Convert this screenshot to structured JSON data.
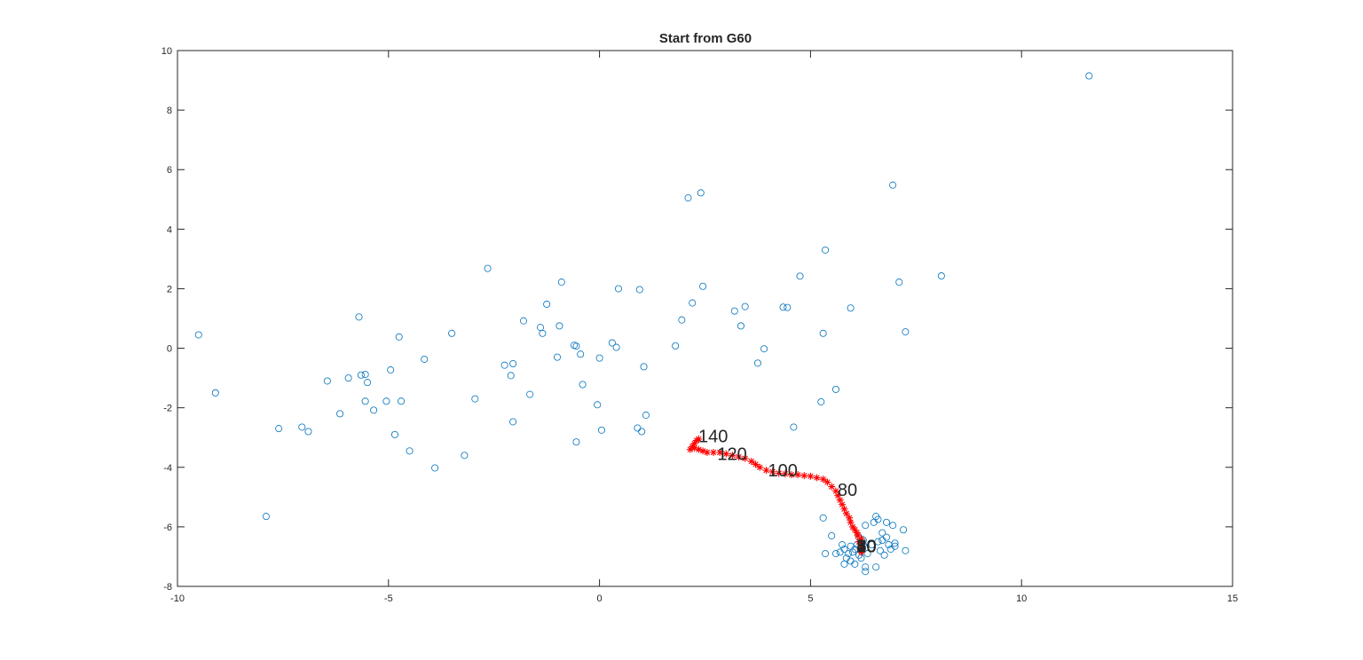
{
  "chart_data": {
    "type": "scatter",
    "title": "Start from G60",
    "xlabel": "",
    "ylabel": "",
    "xlim": [
      -10,
      15
    ],
    "ylim": [
      -8,
      10
    ],
    "xticks": [
      -10,
      -5,
      0,
      5,
      10,
      15
    ],
    "yticks": [
      -8,
      -6,
      -4,
      -2,
      0,
      2,
      4,
      6,
      8,
      10
    ],
    "xtick_labels": [
      "-10",
      "-5",
      "0",
      "5",
      "10",
      "15"
    ],
    "ytick_labels": [
      "-8",
      "-6",
      "-4",
      "-2",
      "0",
      "2",
      "4",
      "6",
      "8",
      "10"
    ],
    "grid": false,
    "colors": {
      "points": "#0072BD",
      "trajectory": "#FF0000",
      "axes": "#262626"
    },
    "series": [
      {
        "marker": "circle",
        "points": [
          [
            -9.5,
            0.45
          ],
          [
            -9.1,
            -1.5
          ],
          [
            -7.9,
            -5.65
          ],
          [
            -7.6,
            -2.7
          ],
          [
            -7.05,
            -2.65
          ],
          [
            -6.9,
            -2.8
          ],
          [
            -6.45,
            -1.1
          ],
          [
            -6.15,
            -2.2
          ],
          [
            -5.95,
            -1.0
          ],
          [
            -5.7,
            1.05
          ],
          [
            -5.65,
            -0.9
          ],
          [
            -5.55,
            -0.88
          ],
          [
            -5.55,
            -1.78
          ],
          [
            -5.5,
            -1.15
          ],
          [
            -5.35,
            -2.08
          ],
          [
            -5.05,
            -1.78
          ],
          [
            -4.95,
            -0.73
          ],
          [
            -4.85,
            -2.9
          ],
          [
            -4.75,
            0.38
          ],
          [
            -4.7,
            -1.78
          ],
          [
            -4.5,
            -3.45
          ],
          [
            -4.15,
            -0.37
          ],
          [
            -3.9,
            -4.02
          ],
          [
            -3.5,
            0.5
          ],
          [
            -3.2,
            -3.6
          ],
          [
            -2.95,
            -1.7
          ],
          [
            -2.65,
            2.68
          ],
          [
            -2.25,
            -0.57
          ],
          [
            -2.1,
            -0.92
          ],
          [
            -2.05,
            -0.52
          ],
          [
            -2.05,
            -2.47
          ],
          [
            -1.8,
            0.92
          ],
          [
            -1.65,
            -1.55
          ],
          [
            -1.4,
            0.7
          ],
          [
            -1.35,
            0.5
          ],
          [
            -1.25,
            1.48
          ],
          [
            -1.0,
            -0.3
          ],
          [
            -0.95,
            0.75
          ],
          [
            -0.9,
            2.22
          ],
          [
            -0.6,
            0.1
          ],
          [
            -0.55,
            0.07
          ],
          [
            -0.55,
            -3.15
          ],
          [
            -0.45,
            -0.2
          ],
          [
            -0.4,
            -1.22
          ],
          [
            -0.05,
            -1.9
          ],
          [
            0.0,
            -0.33
          ],
          [
            0.05,
            -2.75
          ],
          [
            0.3,
            0.18
          ],
          [
            0.4,
            0.03
          ],
          [
            0.45,
            2.0
          ],
          [
            0.9,
            -2.68
          ],
          [
            0.95,
            1.97
          ],
          [
            1.0,
            -2.8
          ],
          [
            1.05,
            -0.62
          ],
          [
            1.1,
            -2.25
          ],
          [
            1.8,
            0.08
          ],
          [
            1.95,
            0.95
          ],
          [
            2.1,
            5.05
          ],
          [
            2.2,
            1.52
          ],
          [
            2.4,
            5.22
          ],
          [
            2.45,
            2.08
          ],
          [
            3.2,
            1.25
          ],
          [
            3.35,
            0.75
          ],
          [
            3.45,
            1.4
          ],
          [
            3.75,
            -0.5
          ],
          [
            3.9,
            -0.02
          ],
          [
            4.35,
            1.38
          ],
          [
            4.45,
            1.37
          ],
          [
            4.6,
            -2.65
          ],
          [
            4.75,
            2.42
          ],
          [
            5.25,
            -1.8
          ],
          [
            5.3,
            0.5
          ],
          [
            5.35,
            3.3
          ],
          [
            5.6,
            -1.38
          ],
          [
            5.95,
            1.35
          ],
          [
            6.95,
            5.48
          ],
          [
            7.1,
            2.22
          ],
          [
            7.25,
            0.55
          ],
          [
            8.1,
            2.43
          ],
          [
            11.6,
            9.15
          ],
          [
            5.3,
            -5.7
          ],
          [
            5.35,
            -6.9
          ],
          [
            5.5,
            -6.3
          ],
          [
            5.6,
            -6.9
          ],
          [
            5.7,
            -6.85
          ],
          [
            5.75,
            -6.6
          ],
          [
            5.8,
            -6.75
          ],
          [
            5.8,
            -7.25
          ],
          [
            5.85,
            -7.05
          ],
          [
            5.9,
            -6.9
          ],
          [
            5.95,
            -6.65
          ],
          [
            5.95,
            -7.15
          ],
          [
            6.0,
            -6.85
          ],
          [
            6.05,
            -6.75
          ],
          [
            6.05,
            -7.25
          ],
          [
            6.1,
            -6.6
          ],
          [
            6.15,
            -6.35
          ],
          [
            6.15,
            -6.95
          ],
          [
            6.2,
            -7.05
          ],
          [
            6.25,
            -6.45
          ],
          [
            6.25,
            -6.6
          ],
          [
            6.3,
            -5.95
          ],
          [
            6.3,
            -6.7
          ],
          [
            6.3,
            -7.35
          ],
          [
            6.3,
            -7.5
          ],
          [
            6.35,
            -6.9
          ],
          [
            6.45,
            -6.6
          ],
          [
            6.5,
            -5.85
          ],
          [
            6.55,
            -5.65
          ],
          [
            6.55,
            -7.35
          ],
          [
            6.6,
            -5.75
          ],
          [
            6.6,
            -6.5
          ],
          [
            6.65,
            -6.8
          ],
          [
            6.7,
            -6.2
          ],
          [
            6.7,
            -6.45
          ],
          [
            6.75,
            -6.95
          ],
          [
            6.8,
            -5.85
          ],
          [
            6.8,
            -6.35
          ],
          [
            6.85,
            -6.6
          ],
          [
            6.9,
            -6.75
          ],
          [
            6.95,
            -5.95
          ],
          [
            7.0,
            -6.65
          ],
          [
            7.0,
            -6.55
          ],
          [
            7.2,
            -6.1
          ],
          [
            7.25,
            -6.8
          ]
        ]
      },
      {
        "marker": "asterisk",
        "points": [
          [
            6.2,
            -6.85
          ],
          [
            6.2,
            -6.8
          ],
          [
            6.18,
            -6.75
          ],
          [
            6.22,
            -6.7
          ],
          [
            6.2,
            -6.6
          ],
          [
            6.15,
            -6.5
          ],
          [
            6.2,
            -6.4
          ],
          [
            6.12,
            -6.3
          ],
          [
            6.1,
            -6.2
          ],
          [
            6.05,
            -6.1
          ],
          [
            6.0,
            -6.0
          ],
          [
            5.95,
            -5.85
          ],
          [
            5.92,
            -5.7
          ],
          [
            5.85,
            -5.55
          ],
          [
            5.8,
            -5.4
          ],
          [
            5.75,
            -5.25
          ],
          [
            5.7,
            -5.1
          ],
          [
            5.65,
            -4.95
          ],
          [
            5.6,
            -4.8
          ],
          [
            5.5,
            -4.65
          ],
          [
            5.4,
            -4.5
          ],
          [
            5.3,
            -4.4
          ],
          [
            5.15,
            -4.35
          ],
          [
            5.0,
            -4.3
          ],
          [
            4.85,
            -4.28
          ],
          [
            4.7,
            -4.25
          ],
          [
            4.55,
            -4.25
          ],
          [
            4.4,
            -4.22
          ],
          [
            4.25,
            -4.2
          ],
          [
            4.1,
            -4.15
          ],
          [
            3.95,
            -4.1
          ],
          [
            3.8,
            -4.0
          ],
          [
            3.7,
            -3.9
          ],
          [
            3.6,
            -3.8
          ],
          [
            3.45,
            -3.7
          ],
          [
            3.3,
            -3.65
          ],
          [
            3.15,
            -3.6
          ],
          [
            3.0,
            -3.55
          ],
          [
            2.85,
            -3.5
          ],
          [
            2.7,
            -3.5
          ],
          [
            2.55,
            -3.5
          ],
          [
            2.45,
            -3.45
          ],
          [
            2.35,
            -3.4
          ],
          [
            2.25,
            -3.35
          ],
          [
            2.15,
            -3.4
          ],
          [
            2.2,
            -3.3
          ],
          [
            2.25,
            -3.2
          ],
          [
            2.3,
            -3.1
          ],
          [
            2.35,
            -3.05
          ]
        ]
      }
    ],
    "annotations": [
      {
        "text": "10",
        "x": 6.05,
        "y": -6.65
      },
      {
        "text": "20",
        "x": 6.05,
        "y": -6.65
      },
      {
        "text": "30",
        "x": 6.05,
        "y": -6.65
      },
      {
        "text": "40",
        "x": 6.05,
        "y": -6.65
      },
      {
        "text": "50",
        "x": 6.05,
        "y": -6.65
      },
      {
        "text": "60",
        "x": 6.05,
        "y": -6.65
      },
      {
        "text": "70",
        "x": 6.05,
        "y": -6.65
      },
      {
        "text": "80",
        "x": 5.6,
        "y": -4.75
      },
      {
        "text": "100",
        "x": 3.95,
        "y": -4.1
      },
      {
        "text": "120",
        "x": 2.75,
        "y": -3.55
      },
      {
        "text": "140",
        "x": 2.3,
        "y": -2.95
      }
    ]
  }
}
